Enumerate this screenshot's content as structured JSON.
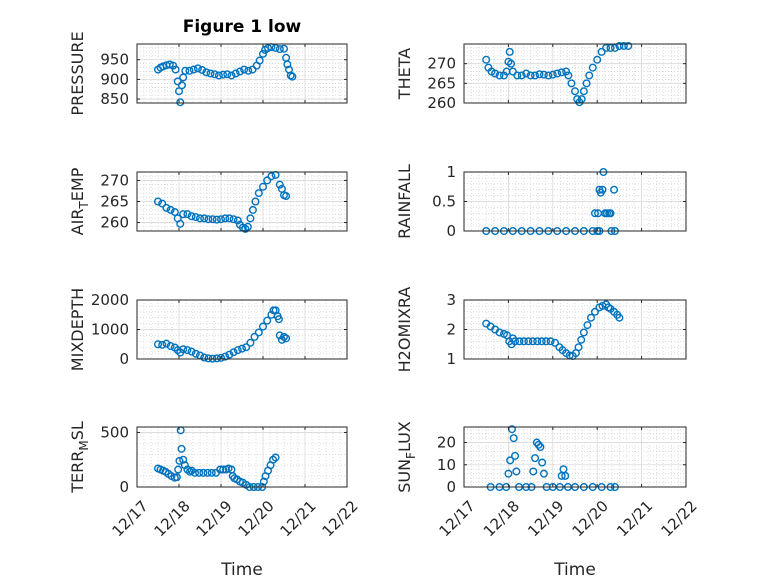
{
  "figure": {
    "title": "Figure 1 low",
    "marker_color": "#0072BD",
    "grid": true
  },
  "x_axis": {
    "label": "Time",
    "range": [
      "12/17",
      "12/22"
    ],
    "tick_labels": [
      "12/17",
      "12/18",
      "12/19",
      "12/20",
      "12/21",
      "12/22"
    ]
  },
  "chart_data": [
    {
      "type": "scatter",
      "name": "pressure",
      "title": "Figure 1 low",
      "ylabel": "PRESSURE",
      "xlim": [
        "12/17",
        "12/22"
      ],
      "ylim": [
        840,
        990
      ],
      "yticks": [
        850,
        900,
        950
      ],
      "show_xticklabels": false,
      "points": [
        [
          0.5,
          925
        ],
        [
          0.56,
          930
        ],
        [
          0.62,
          933
        ],
        [
          0.7,
          936
        ],
        [
          0.78,
          938
        ],
        [
          0.86,
          935
        ],
        [
          0.92,
          925
        ],
        [
          0.97,
          895
        ],
        [
          1.0,
          870
        ],
        [
          1.03,
          842
        ],
        [
          1.07,
          885
        ],
        [
          1.1,
          905
        ],
        [
          1.15,
          922
        ],
        [
          1.25,
          922
        ],
        [
          1.35,
          925
        ],
        [
          1.45,
          928
        ],
        [
          1.55,
          924
        ],
        [
          1.65,
          918
        ],
        [
          1.75,
          915
        ],
        [
          1.85,
          913
        ],
        [
          1.95,
          910
        ],
        [
          2.05,
          912
        ],
        [
          2.15,
          913
        ],
        [
          2.25,
          910
        ],
        [
          2.35,
          915
        ],
        [
          2.45,
          920
        ],
        [
          2.55,
          925
        ],
        [
          2.65,
          922
        ],
        [
          2.75,
          925
        ],
        [
          2.85,
          935
        ],
        [
          2.92,
          948
        ],
        [
          3.0,
          965
        ],
        [
          3.05,
          975
        ],
        [
          3.12,
          980
        ],
        [
          3.2,
          982
        ],
        [
          3.3,
          980
        ],
        [
          3.4,
          977
        ],
        [
          3.5,
          978
        ],
        [
          3.55,
          955
        ],
        [
          3.58,
          938
        ],
        [
          3.62,
          925
        ],
        [
          3.66,
          910
        ],
        [
          3.7,
          907
        ]
      ]
    },
    {
      "type": "scatter",
      "name": "theta",
      "ylabel": "THETA",
      "xlim": [
        "12/17",
        "12/22"
      ],
      "ylim": [
        260,
        275
      ],
      "yticks": [
        260,
        265,
        270
      ],
      "show_xticklabels": false,
      "points": [
        [
          0.5,
          271
        ],
        [
          0.55,
          269
        ],
        [
          0.62,
          268
        ],
        [
          0.7,
          267.5
        ],
        [
          0.8,
          267
        ],
        [
          0.9,
          267
        ],
        [
          0.96,
          268
        ],
        [
          1.0,
          270.5
        ],
        [
          1.03,
          273
        ],
        [
          1.06,
          270
        ],
        [
          1.1,
          268
        ],
        [
          1.2,
          267
        ],
        [
          1.3,
          267
        ],
        [
          1.4,
          267.5
        ],
        [
          1.5,
          267
        ],
        [
          1.6,
          267
        ],
        [
          1.7,
          267.3
        ],
        [
          1.8,
          267.2
        ],
        [
          1.9,
          267
        ],
        [
          2.0,
          267.2
        ],
        [
          2.1,
          267.5
        ],
        [
          2.2,
          267.8
        ],
        [
          2.3,
          268
        ],
        [
          2.35,
          267
        ],
        [
          2.42,
          265
        ],
        [
          2.5,
          263
        ],
        [
          2.55,
          261
        ],
        [
          2.6,
          260.2
        ],
        [
          2.65,
          261
        ],
        [
          2.7,
          263
        ],
        [
          2.76,
          265
        ],
        [
          2.82,
          267
        ],
        [
          2.9,
          269
        ],
        [
          3.0,
          271
        ],
        [
          3.1,
          273
        ],
        [
          3.2,
          274
        ],
        [
          3.3,
          274
        ],
        [
          3.4,
          274
        ],
        [
          3.5,
          274.5
        ],
        [
          3.6,
          274.5
        ],
        [
          3.7,
          274.5
        ]
      ]
    },
    {
      "type": "scatter",
      "name": "air_temp",
      "ylabel": "AIR_TEMP",
      "xlim": [
        "12/17",
        "12/22"
      ],
      "ylim": [
        258,
        272
      ],
      "yticks": [
        260,
        265,
        270
      ],
      "show_xticklabels": false,
      "points": [
        [
          0.5,
          265
        ],
        [
          0.6,
          264.5
        ],
        [
          0.7,
          263.5
        ],
        [
          0.8,
          263
        ],
        [
          0.9,
          262.5
        ],
        [
          0.97,
          261
        ],
        [
          1.03,
          259.7
        ],
        [
          1.1,
          262
        ],
        [
          1.2,
          262
        ],
        [
          1.3,
          261.5
        ],
        [
          1.4,
          261.3
        ],
        [
          1.5,
          261
        ],
        [
          1.6,
          261
        ],
        [
          1.7,
          260.8
        ],
        [
          1.8,
          260.8
        ],
        [
          1.9,
          260.7
        ],
        [
          2.0,
          260.8
        ],
        [
          2.1,
          261
        ],
        [
          2.2,
          261
        ],
        [
          2.3,
          260.8
        ],
        [
          2.4,
          260.5
        ],
        [
          2.45,
          259.5
        ],
        [
          2.52,
          258.8
        ],
        [
          2.58,
          258.5
        ],
        [
          2.64,
          259
        ],
        [
          2.7,
          261
        ],
        [
          2.76,
          263
        ],
        [
          2.82,
          265
        ],
        [
          2.9,
          267
        ],
        [
          3.0,
          268.5
        ],
        [
          3.1,
          270
        ],
        [
          3.2,
          271
        ],
        [
          3.3,
          271.3
        ],
        [
          3.4,
          269
        ],
        [
          3.45,
          268
        ],
        [
          3.5,
          266.5
        ],
        [
          3.55,
          266.3
        ]
      ]
    },
    {
      "type": "scatter",
      "name": "rainfall",
      "ylabel": "RAINFALL",
      "xlim": [
        "12/17",
        "12/22"
      ],
      "ylim": [
        0,
        1
      ],
      "yticks": [
        0,
        0.5,
        1
      ],
      "show_xticklabels": false,
      "points": [
        [
          0.5,
          0
        ],
        [
          0.7,
          0
        ],
        [
          0.9,
          0
        ],
        [
          1.1,
          0
        ],
        [
          1.3,
          0
        ],
        [
          1.5,
          0
        ],
        [
          1.7,
          0
        ],
        [
          1.9,
          0
        ],
        [
          2.1,
          0
        ],
        [
          2.3,
          0
        ],
        [
          2.5,
          0
        ],
        [
          2.7,
          0
        ],
        [
          2.9,
          0
        ],
        [
          3.0,
          0
        ],
        [
          3.05,
          0
        ],
        [
          2.95,
          0.3
        ],
        [
          3.02,
          0.3
        ],
        [
          3.05,
          0.7
        ],
        [
          3.08,
          0.65
        ],
        [
          3.12,
          0.7
        ],
        [
          3.14,
          1.0
        ],
        [
          3.18,
          0.3
        ],
        [
          3.22,
          0.3
        ],
        [
          3.27,
          0.3
        ],
        [
          3.3,
          0.3
        ],
        [
          3.32,
          0
        ],
        [
          3.38,
          0.7
        ],
        [
          3.4,
          0
        ]
      ]
    },
    {
      "type": "scatter",
      "name": "mixdepth",
      "ylabel": "MIXDEPTH",
      "xlim": [
        "12/17",
        "12/22"
      ],
      "ylim": [
        0,
        2000
      ],
      "yticks": [
        0,
        1000,
        2000
      ],
      "show_xticklabels": false,
      "points": [
        [
          0.5,
          500
        ],
        [
          0.6,
          480
        ],
        [
          0.7,
          520
        ],
        [
          0.8,
          440
        ],
        [
          0.9,
          390
        ],
        [
          0.97,
          300
        ],
        [
          1.03,
          220
        ],
        [
          1.1,
          330
        ],
        [
          1.2,
          300
        ],
        [
          1.3,
          250
        ],
        [
          1.4,
          180
        ],
        [
          1.5,
          120
        ],
        [
          1.6,
          50
        ],
        [
          1.7,
          20
        ],
        [
          1.8,
          10
        ],
        [
          1.9,
          20
        ],
        [
          2.0,
          40
        ],
        [
          2.1,
          80
        ],
        [
          2.2,
          150
        ],
        [
          2.3,
          230
        ],
        [
          2.4,
          300
        ],
        [
          2.5,
          350
        ],
        [
          2.6,
          400
        ],
        [
          2.7,
          550
        ],
        [
          2.8,
          750
        ],
        [
          2.9,
          900
        ],
        [
          3.0,
          1100
        ],
        [
          3.1,
          1300
        ],
        [
          3.2,
          1500
        ],
        [
          3.25,
          1650
        ],
        [
          3.3,
          1650
        ],
        [
          3.35,
          1450
        ],
        [
          3.38,
          1350
        ],
        [
          3.4,
          800
        ],
        [
          3.45,
          650
        ],
        [
          3.5,
          750
        ],
        [
          3.55,
          700
        ]
      ]
    },
    {
      "type": "scatter",
      "name": "h2omixra",
      "ylabel": "H2OMIXRA",
      "xlim": [
        "12/17",
        "12/22"
      ],
      "ylim": [
        1,
        3
      ],
      "yticks": [
        1,
        2,
        3
      ],
      "show_xticklabels": false,
      "points": [
        [
          0.5,
          2.2
        ],
        [
          0.6,
          2.1
        ],
        [
          0.7,
          2.0
        ],
        [
          0.8,
          1.9
        ],
        [
          0.9,
          1.85
        ],
        [
          0.97,
          1.8
        ],
        [
          1.02,
          1.6
        ],
        [
          1.07,
          1.5
        ],
        [
          1.1,
          1.7
        ],
        [
          1.15,
          1.6
        ],
        [
          1.25,
          1.6
        ],
        [
          1.35,
          1.6
        ],
        [
          1.45,
          1.6
        ],
        [
          1.55,
          1.6
        ],
        [
          1.65,
          1.6
        ],
        [
          1.75,
          1.6
        ],
        [
          1.85,
          1.6
        ],
        [
          1.95,
          1.6
        ],
        [
          2.05,
          1.55
        ],
        [
          2.15,
          1.4
        ],
        [
          2.22,
          1.3
        ],
        [
          2.3,
          1.2
        ],
        [
          2.38,
          1.12
        ],
        [
          2.45,
          1.1
        ],
        [
          2.52,
          1.2
        ],
        [
          2.58,
          1.4
        ],
        [
          2.64,
          1.65
        ],
        [
          2.7,
          1.9
        ],
        [
          2.78,
          2.15
        ],
        [
          2.86,
          2.4
        ],
        [
          2.95,
          2.6
        ],
        [
          3.05,
          2.75
        ],
        [
          3.12,
          2.8
        ],
        [
          3.2,
          2.85
        ],
        [
          3.25,
          2.75
        ],
        [
          3.3,
          2.7
        ],
        [
          3.38,
          2.6
        ],
        [
          3.45,
          2.5
        ],
        [
          3.5,
          2.4
        ]
      ]
    },
    {
      "type": "scatter",
      "name": "terr_msl",
      "ylabel": "TERR_MSL",
      "xlim": [
        "12/17",
        "12/22"
      ],
      "ylim": [
        0,
        550
      ],
      "yticks": [
        0,
        500
      ],
      "show_xticklabels": true,
      "points": [
        [
          0.5,
          170
        ],
        [
          0.56,
          160
        ],
        [
          0.62,
          150
        ],
        [
          0.68,
          140
        ],
        [
          0.75,
          120
        ],
        [
          0.82,
          100
        ],
        [
          0.9,
          85
        ],
        [
          0.95,
          90
        ],
        [
          0.98,
          160
        ],
        [
          1.01,
          240
        ],
        [
          1.04,
          520
        ],
        [
          1.06,
          350
        ],
        [
          1.1,
          250
        ],
        [
          1.14,
          200
        ],
        [
          1.2,
          160
        ],
        [
          1.26,
          140
        ],
        [
          1.3,
          150
        ],
        [
          1.38,
          130
        ],
        [
          1.48,
          130
        ],
        [
          1.58,
          130
        ],
        [
          1.68,
          130
        ],
        [
          1.78,
          130
        ],
        [
          1.88,
          130
        ],
        [
          1.98,
          160
        ],
        [
          2.05,
          160
        ],
        [
          2.12,
          160
        ],
        [
          2.18,
          170
        ],
        [
          2.25,
          160
        ],
        [
          2.28,
          100
        ],
        [
          2.32,
          80
        ],
        [
          2.38,
          70
        ],
        [
          2.45,
          50
        ],
        [
          2.52,
          40
        ],
        [
          2.6,
          20
        ],
        [
          2.68,
          0
        ],
        [
          2.78,
          0
        ],
        [
          2.88,
          0
        ],
        [
          2.98,
          0
        ],
        [
          3.02,
          50
        ],
        [
          3.06,
          100
        ],
        [
          3.12,
          150
        ],
        [
          3.18,
          200
        ],
        [
          3.24,
          250
        ],
        [
          3.3,
          270
        ]
      ]
    },
    {
      "type": "scatter",
      "name": "sun_flux",
      "ylabel": "SUN_FLUX",
      "xlim": [
        "12/17",
        "12/22"
      ],
      "ylim": [
        0,
        27
      ],
      "yticks": [
        0,
        10,
        20
      ],
      "show_xticklabels": true,
      "points": [
        [
          0.6,
          0
        ],
        [
          0.8,
          0
        ],
        [
          0.95,
          0
        ],
        [
          1.0,
          6
        ],
        [
          1.04,
          12
        ],
        [
          1.08,
          26
        ],
        [
          1.12,
          22
        ],
        [
          1.15,
          14
        ],
        [
          1.18,
          7
        ],
        [
          1.24,
          0
        ],
        [
          1.4,
          0
        ],
        [
          1.52,
          0
        ],
        [
          1.56,
          7
        ],
        [
          1.6,
          13
        ],
        [
          1.64,
          20
        ],
        [
          1.68,
          19
        ],
        [
          1.72,
          18
        ],
        [
          1.76,
          11
        ],
        [
          1.8,
          6
        ],
        [
          1.86,
          0
        ],
        [
          2.0,
          0
        ],
        [
          2.16,
          0
        ],
        [
          2.2,
          5
        ],
        [
          2.24,
          8
        ],
        [
          2.28,
          5
        ],
        [
          2.34,
          0
        ],
        [
          2.5,
          0
        ],
        [
          2.7,
          0
        ],
        [
          2.9,
          0
        ],
        [
          3.1,
          0
        ],
        [
          3.3,
          0
        ],
        [
          3.4,
          0
        ]
      ]
    }
  ]
}
